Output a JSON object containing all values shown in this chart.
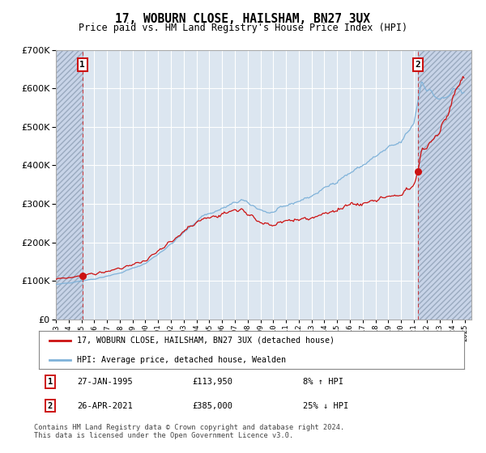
{
  "title": "17, WOBURN CLOSE, HAILSHAM, BN27 3UX",
  "subtitle": "Price paid vs. HM Land Registry's House Price Index (HPI)",
  "legend_label_red": "17, WOBURN CLOSE, HAILSHAM, BN27 3UX (detached house)",
  "legend_label_blue": "HPI: Average price, detached house, Wealden",
  "purchase1_date": "27-JAN-1995",
  "purchase1_price": 113950,
  "purchase1_label": "8% ↑ HPI",
  "purchase2_date": "26-APR-2021",
  "purchase2_price": 385000,
  "purchase2_label": "25% ↓ HPI",
  "footnote": "Contains HM Land Registry data © Crown copyright and database right 2024.\nThis data is licensed under the Open Government Licence v3.0.",
  "plot_bg_color": "#dce6f0",
  "hatch_bg_color": "#c8d4e8",
  "ylim_min": 0,
  "ylim_max": 700000,
  "yticks": [
    0,
    100000,
    200000,
    300000,
    400000,
    500000,
    600000,
    700000
  ],
  "purchase1_year": 1995.08,
  "purchase2_year": 2021.33,
  "xmin": 1993.0,
  "xmax": 2025.5
}
